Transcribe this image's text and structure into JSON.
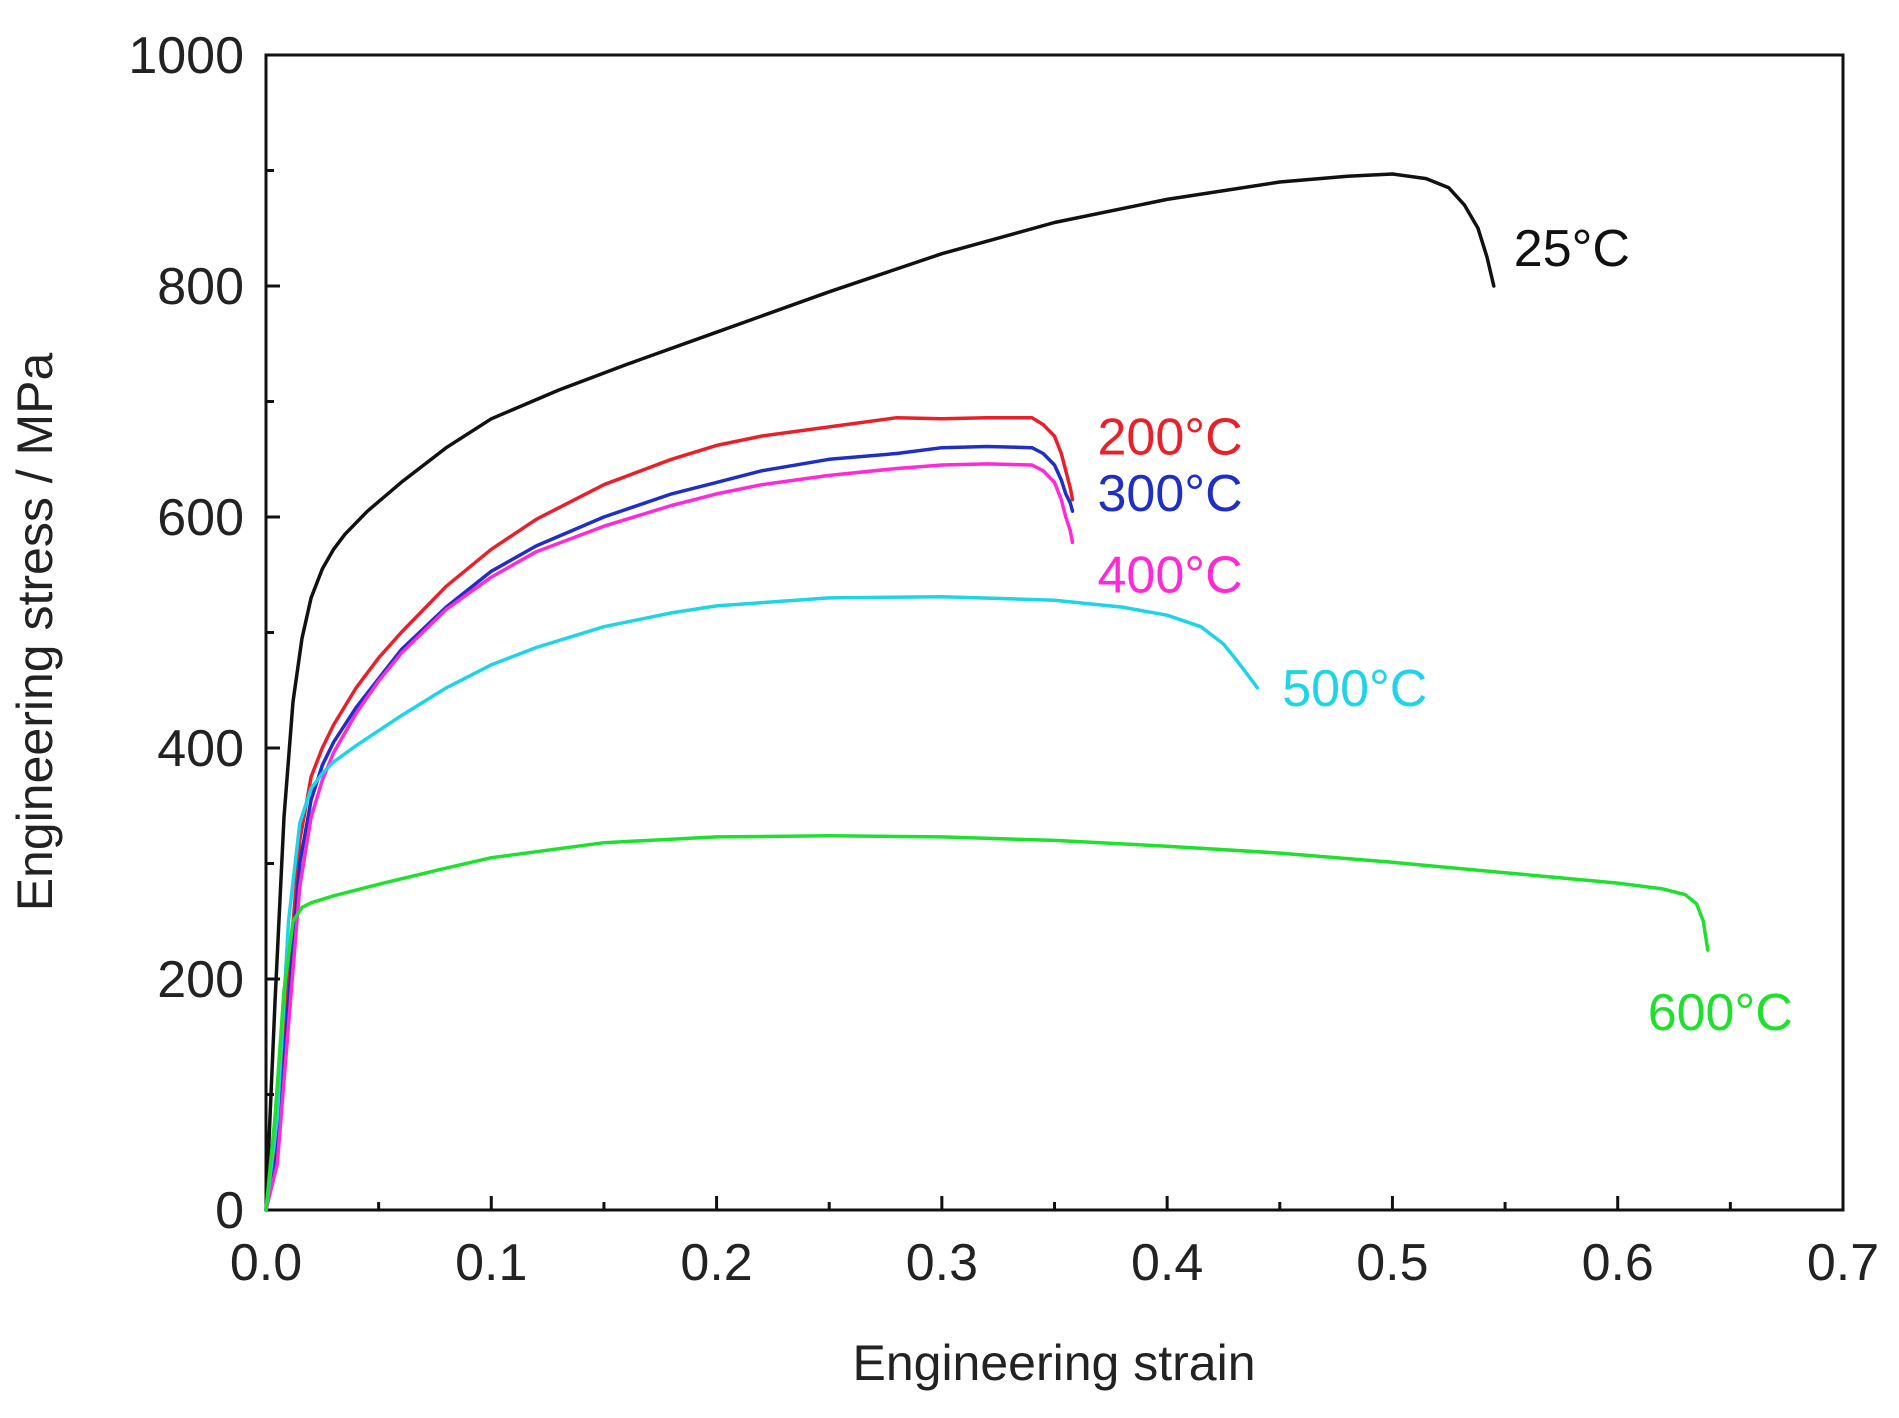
{
  "chart_data": {
    "type": "line",
    "title": "",
    "xlabel": "Engineering strain",
    "ylabel": "Engineering stress / MPa",
    "xlim": [
      0.0,
      0.7
    ],
    "ylim": [
      0,
      1000
    ],
    "x_ticks": [
      0.0,
      0.1,
      0.2,
      0.3,
      0.4,
      0.5,
      0.6,
      0.7
    ],
    "x_tick_labels": [
      "0.0",
      "0.1",
      "0.2",
      "0.3",
      "0.4",
      "0.5",
      "0.6",
      "0.7"
    ],
    "y_ticks": [
      0,
      200,
      400,
      600,
      800,
      1000
    ],
    "y_tick_labels": [
      "0",
      "200",
      "400",
      "600",
      "800",
      "1000"
    ],
    "grid": false,
    "series": [
      {
        "name": "25°C",
        "label": "25°C",
        "color": "#111111",
        "x": [
          0.0,
          0.004,
          0.008,
          0.012,
          0.016,
          0.02,
          0.025,
          0.03,
          0.035,
          0.045,
          0.06,
          0.08,
          0.1,
          0.13,
          0.16,
          0.2,
          0.25,
          0.3,
          0.35,
          0.4,
          0.45,
          0.48,
          0.5,
          0.515,
          0.525,
          0.532,
          0.538,
          0.542,
          0.545
        ],
        "y": [
          0,
          180,
          340,
          440,
          495,
          530,
          555,
          572,
          585,
          605,
          630,
          660,
          685,
          710,
          732,
          760,
          795,
          828,
          855,
          875,
          890,
          895,
          897,
          893,
          885,
          870,
          850,
          825,
          800
        ]
      },
      {
        "name": "200°C",
        "label": "200°C",
        "color": "#e8202a",
        "x": [
          0.0,
          0.005,
          0.01,
          0.015,
          0.02,
          0.025,
          0.03,
          0.04,
          0.05,
          0.06,
          0.08,
          0.1,
          0.12,
          0.15,
          0.18,
          0.2,
          0.22,
          0.25,
          0.28,
          0.3,
          0.32,
          0.34,
          0.345,
          0.35,
          0.353,
          0.355,
          0.357,
          0.358
        ],
        "y": [
          0,
          60,
          200,
          320,
          375,
          400,
          420,
          452,
          478,
          500,
          540,
          572,
          598,
          628,
          650,
          662,
          670,
          678,
          686,
          685,
          686,
          686,
          680,
          670,
          655,
          640,
          625,
          615
        ]
      },
      {
        "name": "300°C",
        "label": "300°C",
        "color": "#1f2fc4",
        "x": [
          0.0,
          0.005,
          0.01,
          0.015,
          0.02,
          0.025,
          0.03,
          0.04,
          0.05,
          0.06,
          0.08,
          0.1,
          0.12,
          0.15,
          0.18,
          0.2,
          0.22,
          0.25,
          0.28,
          0.3,
          0.32,
          0.34,
          0.345,
          0.35,
          0.353,
          0.355,
          0.357,
          0.358
        ],
        "y": [
          0,
          50,
          180,
          300,
          355,
          385,
          405,
          435,
          460,
          485,
          522,
          553,
          575,
          600,
          620,
          630,
          640,
          650,
          655,
          660,
          661,
          660,
          655,
          645,
          632,
          620,
          612,
          605
        ]
      },
      {
        "name": "400°C",
        "label": "400°C",
        "color": "#ff2ad6",
        "x": [
          0.0,
          0.005,
          0.01,
          0.015,
          0.02,
          0.025,
          0.03,
          0.04,
          0.05,
          0.06,
          0.08,
          0.1,
          0.12,
          0.15,
          0.18,
          0.2,
          0.22,
          0.25,
          0.28,
          0.3,
          0.32,
          0.34,
          0.345,
          0.35,
          0.353,
          0.355,
          0.357,
          0.358
        ],
        "y": [
          0,
          40,
          160,
          280,
          340,
          372,
          396,
          430,
          458,
          482,
          520,
          548,
          570,
          592,
          610,
          620,
          628,
          636,
          642,
          645,
          646,
          645,
          640,
          630,
          615,
          600,
          588,
          578
        ]
      },
      {
        "name": "500°C",
        "label": "500°C",
        "color": "#1ed4e6",
        "x": [
          0.0,
          0.005,
          0.01,
          0.015,
          0.02,
          0.025,
          0.03,
          0.04,
          0.05,
          0.06,
          0.08,
          0.1,
          0.12,
          0.15,
          0.18,
          0.2,
          0.25,
          0.3,
          0.35,
          0.38,
          0.4,
          0.415,
          0.425,
          0.43,
          0.434,
          0.437,
          0.439,
          0.44
        ],
        "y": [
          0,
          80,
          250,
          335,
          365,
          378,
          388,
          402,
          415,
          428,
          452,
          472,
          487,
          505,
          517,
          523,
          530,
          531,
          528,
          522,
          515,
          505,
          490,
          478,
          468,
          460,
          455,
          452
        ]
      },
      {
        "name": "600°C",
        "label": "600°C",
        "color": "#1fe02c",
        "x": [
          0.0,
          0.004,
          0.008,
          0.012,
          0.016,
          0.02,
          0.03,
          0.05,
          0.08,
          0.1,
          0.15,
          0.2,
          0.25,
          0.3,
          0.35,
          0.4,
          0.45,
          0.5,
          0.55,
          0.6,
          0.62,
          0.63,
          0.635,
          0.638,
          0.64
        ],
        "y": [
          0,
          80,
          190,
          250,
          262,
          266,
          272,
          282,
          296,
          305,
          318,
          323,
          324,
          323,
          320,
          315,
          309,
          301,
          292,
          283,
          278,
          273,
          265,
          250,
          225
        ]
      }
    ]
  }
}
